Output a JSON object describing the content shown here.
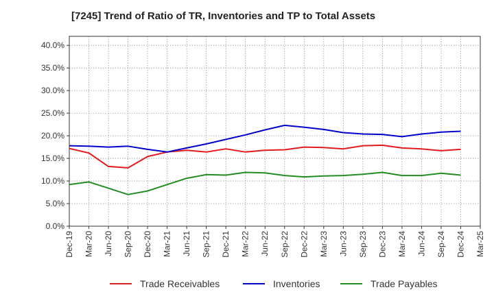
{
  "chart_data": {
    "type": "line",
    "title": "[7245]  Trend of Ratio of TR, Inventories and TP to Total Assets",
    "xlabel": "",
    "ylabel": "",
    "x": [
      "Dec-19",
      "Mar-20",
      "Jun-20",
      "Sep-20",
      "Dec-20",
      "Mar-21",
      "Jun-21",
      "Sep-21",
      "Dec-21",
      "Mar-22",
      "Jun-22",
      "Sep-22",
      "Dec-22",
      "Mar-23",
      "Jun-23",
      "Sep-23",
      "Dec-23",
      "Mar-24",
      "Jun-24",
      "Sep-24",
      "Dec-24",
      "Mar-25"
    ],
    "ylim": [
      0,
      42
    ],
    "yticks": [
      0,
      5,
      10,
      15,
      20,
      25,
      30,
      35,
      40
    ],
    "ytick_labels": [
      "0.0%",
      "5.0%",
      "10.0%",
      "15.0%",
      "20.0%",
      "25.0%",
      "30.0%",
      "35.0%",
      "40.0%"
    ],
    "grid": true,
    "legend_position": "bottom",
    "series": [
      {
        "name": "Trade Receivables",
        "color": "#e31a1c",
        "values": [
          17.2,
          16.2,
          13.2,
          12.9,
          15.4,
          16.4,
          16.8,
          16.4,
          17.1,
          16.4,
          16.8,
          16.9,
          17.5,
          17.4,
          17.1,
          17.8,
          17.9,
          17.3,
          17.1,
          16.7,
          17.0,
          null
        ]
      },
      {
        "name": "Inventories",
        "color": "#0000cc",
        "values": [
          17.8,
          17.7,
          17.5,
          17.7,
          17.0,
          16.4,
          17.3,
          18.2,
          19.2,
          20.2,
          21.3,
          22.3,
          21.9,
          21.4,
          20.7,
          20.4,
          20.3,
          19.8,
          20.4,
          20.8,
          21.0,
          null
        ]
      },
      {
        "name": "Trade Payables",
        "color": "#228b22",
        "values": [
          9.2,
          9.8,
          8.4,
          7.0,
          7.8,
          9.2,
          10.6,
          11.4,
          11.3,
          11.9,
          11.8,
          11.2,
          10.9,
          11.1,
          11.2,
          11.5,
          11.9,
          11.2,
          11.2,
          11.7,
          11.3,
          null
        ]
      }
    ]
  }
}
